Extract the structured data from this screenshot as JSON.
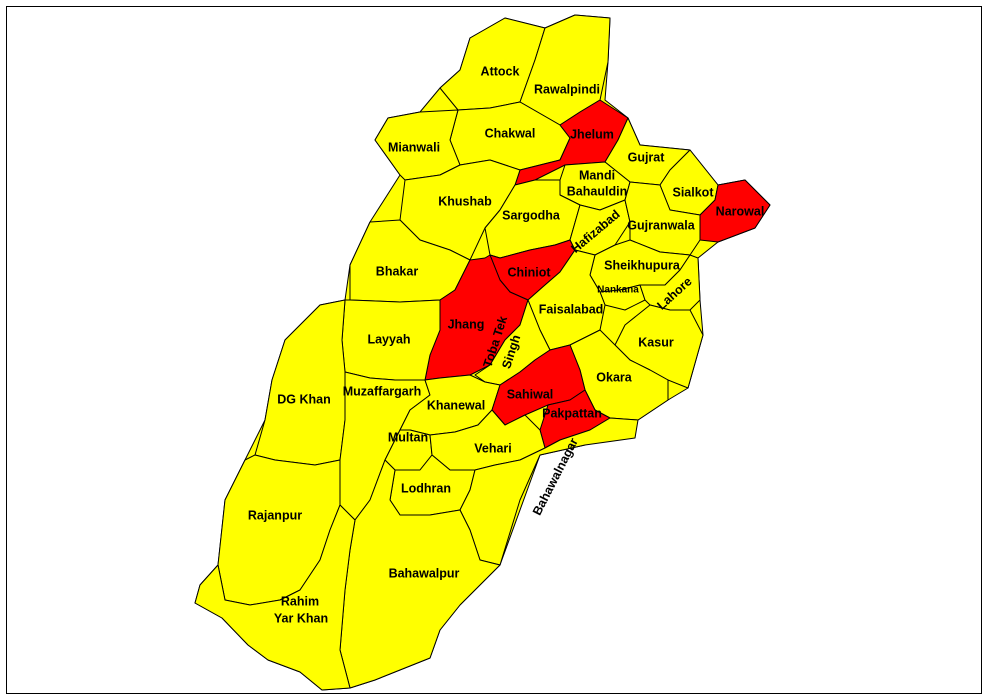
{
  "colors": {
    "normal": "#ffff00",
    "highlighted": "#ff0000",
    "border": "#000000"
  },
  "districts": [
    {
      "key": "attock",
      "name": "Attock",
      "highlighted": false
    },
    {
      "key": "rawalpindi",
      "name": "Rawalpindi",
      "highlighted": false
    },
    {
      "key": "chakwal",
      "name": "Chakwal",
      "highlighted": false
    },
    {
      "key": "jhelum",
      "name": "Jhelum",
      "highlighted": true
    },
    {
      "key": "mianwali",
      "name": "Mianwali",
      "highlighted": false
    },
    {
      "key": "gujrat",
      "name": "Gujrat",
      "highlighted": false
    },
    {
      "key": "mandi",
      "name": "Mandi Bahauldin",
      "line1": "Mandi",
      "line2": "Bahauldin",
      "highlighted": false
    },
    {
      "key": "sialkot",
      "name": "Sialkot",
      "highlighted": false
    },
    {
      "key": "narowal",
      "name": "Narowal",
      "highlighted": true
    },
    {
      "key": "khushab",
      "name": "Khushab",
      "highlighted": false
    },
    {
      "key": "sargodha",
      "name": "Sargodha",
      "highlighted": false
    },
    {
      "key": "hafizabad",
      "name": "Hafizabad",
      "highlighted": false
    },
    {
      "key": "gujranwala",
      "name": "Gujranwala",
      "highlighted": false
    },
    {
      "key": "bhakar",
      "name": "Bhakar",
      "highlighted": false
    },
    {
      "key": "chiniot",
      "name": "Chiniot",
      "highlighted": true
    },
    {
      "key": "sheikhupura",
      "name": "Sheikhupura",
      "highlighted": false
    },
    {
      "key": "nankana",
      "name": "Nankana",
      "highlighted": false
    },
    {
      "key": "lahore",
      "name": "Lahore",
      "highlighted": false
    },
    {
      "key": "faisalabad",
      "name": "Faisalabad",
      "highlighted": false
    },
    {
      "key": "jhang",
      "name": "Jhang",
      "highlighted": true
    },
    {
      "key": "layyah",
      "name": "Layyah",
      "highlighted": false
    },
    {
      "key": "tobatek",
      "name": "Toba Tek Singh",
      "line1": "Toba Tek",
      "line2": "Singh",
      "highlighted": false
    },
    {
      "key": "kasur",
      "name": "Kasur",
      "highlighted": false
    },
    {
      "key": "okara",
      "name": "Okara",
      "highlighted": false
    },
    {
      "key": "dgkhan",
      "name": "DG Khan",
      "highlighted": false
    },
    {
      "key": "muzaffargarh",
      "name": "Muzaffargarh",
      "highlighted": false
    },
    {
      "key": "khanewal",
      "name": "Khanewal",
      "highlighted": false
    },
    {
      "key": "sahiwal",
      "name": "Sahiwal",
      "highlighted": true
    },
    {
      "key": "pakpattan",
      "name": "Pakpattan",
      "highlighted": true
    },
    {
      "key": "multan",
      "name": "Multan",
      "highlighted": false
    },
    {
      "key": "vehari",
      "name": "Vehari",
      "highlighted": false
    },
    {
      "key": "lodhran",
      "name": "Lodhran",
      "highlighted": false
    },
    {
      "key": "bahawalnagar",
      "name": "Bahawalnagar",
      "highlighted": false
    },
    {
      "key": "rajanpur",
      "name": "Rajanpur",
      "highlighted": false
    },
    {
      "key": "bahawalpur",
      "name": "Bahawalpur",
      "highlighted": false
    },
    {
      "key": "rahimyarkhan",
      "name": "Rahim Yar Khan",
      "line1": "Rahim",
      "line2": "Yar Khan",
      "highlighted": false
    }
  ]
}
